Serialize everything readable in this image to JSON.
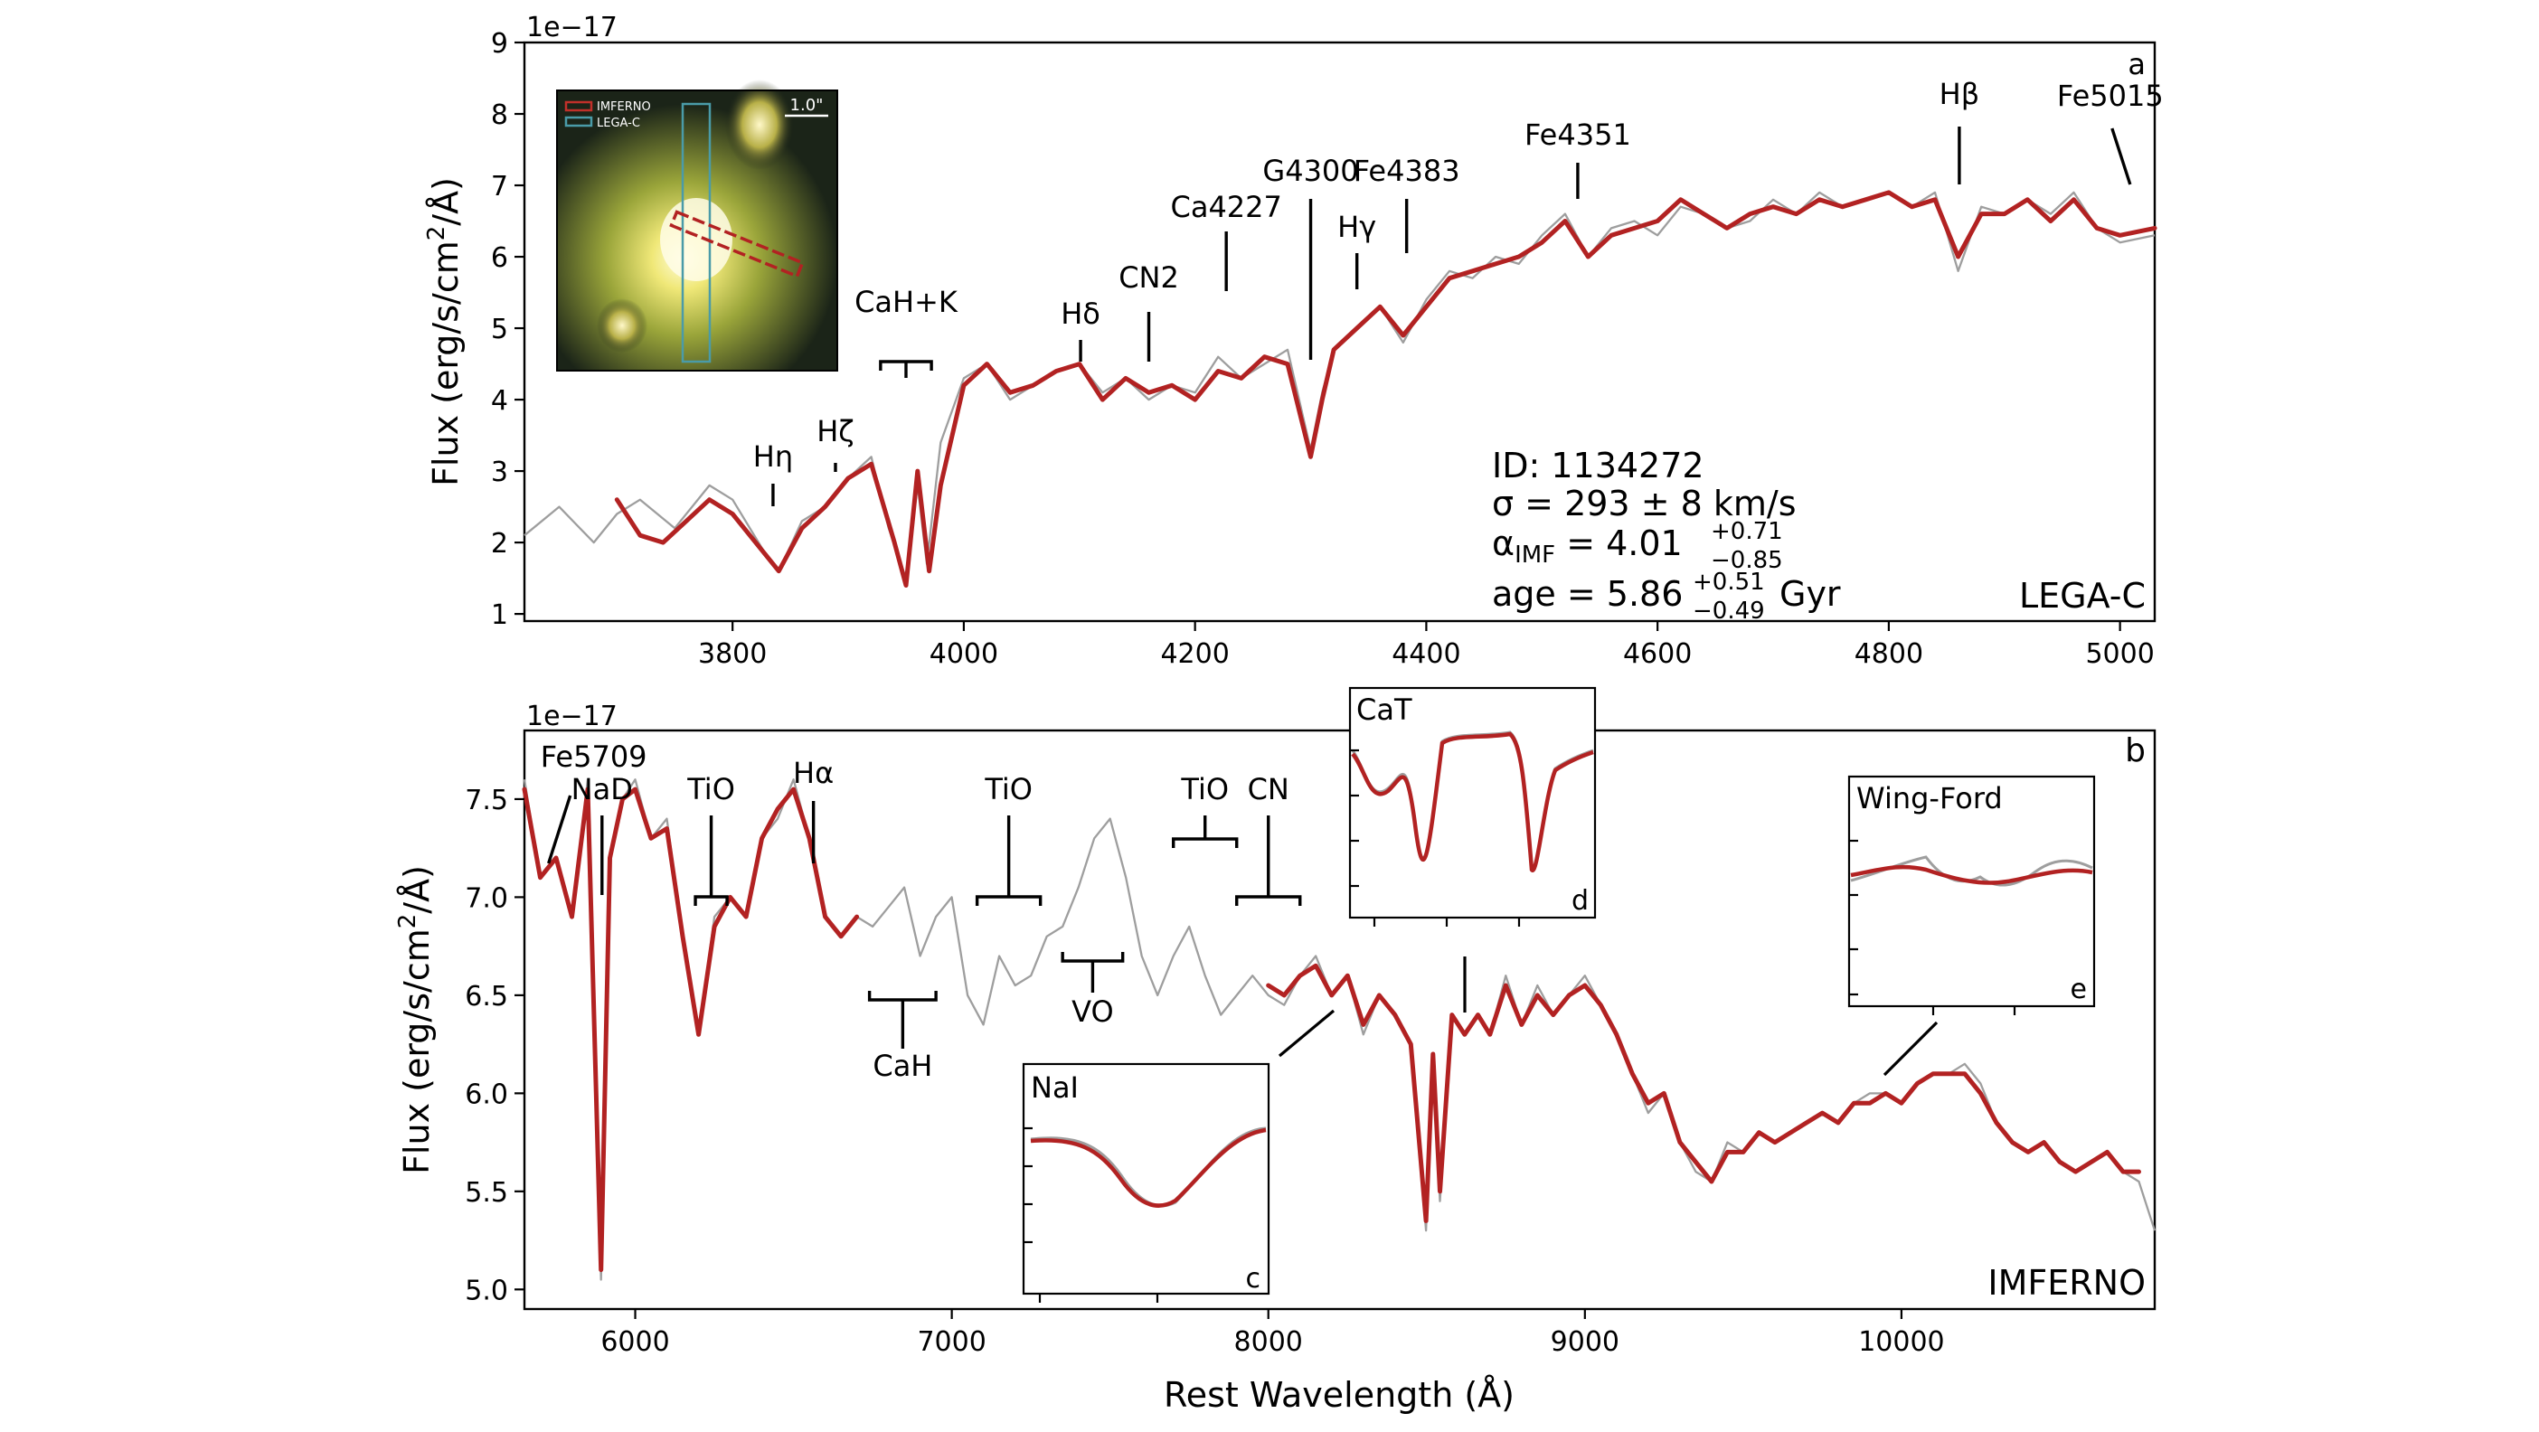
{
  "figure": {
    "top_panel": {
      "panel_letter": "a",
      "survey": "LEGA-C",
      "exponent_label": "1e−17",
      "ylabel": "Flux (erg/s/cm²/Å)",
      "info": {
        "id": "ID: 1134272",
        "sigma": "σ = 293 ± 8 km/s",
        "alpha_main": "α",
        "alpha_sub": "IMF",
        "alpha_val": " = 4.01",
        "alpha_up": "+0.71",
        "alpha_lo": "−0.85",
        "age_main": "age = 5.86",
        "age_up": "+0.51",
        "age_lo": "−0.49",
        "age_unit": " Gyr"
      },
      "image_inset": {
        "legend_imferno": "IMFERNO",
        "legend_legac": "LEGA-C",
        "scale_label": "1.0\""
      }
    },
    "bottom_panel": {
      "panel_letter": "b",
      "survey": "IMFERNO",
      "exponent_label": "1e−17",
      "ylabel": "Flux (erg/s/cm²/Å)",
      "xlabel": "Rest Wavelength (Å)",
      "insets": {
        "c": "NaI",
        "d": "CaT",
        "e": "Wing-Ford"
      }
    }
  },
  "chart_data": [
    {
      "panel": "a",
      "type": "line",
      "title": "",
      "xlabel": "",
      "ylabel": "Flux (erg/s/cm²/Å)",
      "y_scale_factor": "1e−17",
      "xlim": [
        3620,
        5030
      ],
      "ylim": [
        0.9,
        9.0
      ],
      "xticks": [
        3800,
        4000,
        4200,
        4400,
        4600,
        4800,
        5000
      ],
      "yticks": [
        1,
        2,
        3,
        4,
        5,
        6,
        7,
        8,
        9
      ],
      "series": [
        {
          "name": "observed",
          "color": "#9e9e9e",
          "x": [
            3620,
            3650,
            3680,
            3700,
            3720,
            3750,
            3780,
            3800,
            3830,
            3840,
            3860,
            3880,
            3900,
            3920,
            3935,
            3950,
            3960,
            3968,
            3980,
            4000,
            4020,
            4040,
            4060,
            4080,
            4100,
            4120,
            4140,
            4160,
            4180,
            4200,
            4220,
            4240,
            4260,
            4280,
            4300,
            4310,
            4320,
            4340,
            4360,
            4380,
            4400,
            4420,
            4440,
            4460,
            4480,
            4500,
            4520,
            4540,
            4560,
            4580,
            4600,
            4620,
            4640,
            4660,
            4680,
            4700,
            4720,
            4740,
            4760,
            4780,
            4800,
            4820,
            4840,
            4860,
            4880,
            4900,
            4920,
            4940,
            4960,
            4980,
            5000,
            5030
          ],
          "y": [
            2.1,
            2.5,
            2.0,
            2.4,
            2.6,
            2.2,
            2.8,
            2.6,
            1.8,
            1.6,
            2.3,
            2.5,
            2.9,
            3.2,
            2.2,
            1.5,
            2.8,
            1.7,
            3.4,
            4.3,
            4.5,
            4.0,
            4.2,
            4.4,
            4.5,
            4.1,
            4.3,
            4.0,
            4.2,
            4.1,
            4.6,
            4.3,
            4.5,
            4.7,
            3.3,
            4.1,
            4.7,
            5.0,
            5.3,
            4.8,
            5.4,
            5.8,
            5.7,
            6.0,
            5.9,
            6.3,
            6.6,
            6.0,
            6.4,
            6.5,
            6.3,
            6.7,
            6.6,
            6.4,
            6.5,
            6.8,
            6.6,
            6.9,
            6.7,
            6.8,
            6.9,
            6.7,
            6.9,
            5.8,
            6.7,
            6.6,
            6.8,
            6.6,
            6.9,
            6.4,
            6.2,
            6.3
          ]
        },
        {
          "name": "model",
          "color": "#b22222",
          "x": [
            3700,
            3720,
            3740,
            3760,
            3780,
            3800,
            3820,
            3840,
            3860,
            3880,
            3900,
            3920,
            3940,
            3950,
            3960,
            3970,
            3980,
            4000,
            4020,
            4040,
            4060,
            4080,
            4100,
            4120,
            4140,
            4160,
            4180,
            4200,
            4220,
            4240,
            4260,
            4280,
            4300,
            4310,
            4320,
            4340,
            4360,
            4380,
            4400,
            4420,
            4440,
            4460,
            4480,
            4500,
            4520,
            4540,
            4560,
            4580,
            4600,
            4620,
            4640,
            4660,
            4680,
            4700,
            4720,
            4740,
            4760,
            4780,
            4800,
            4820,
            4840,
            4860,
            4880,
            4900,
            4920,
            4940,
            4960,
            4980,
            5000,
            5030
          ],
          "y": [
            2.6,
            2.1,
            2.0,
            2.3,
            2.6,
            2.4,
            2.0,
            1.6,
            2.2,
            2.5,
            2.9,
            3.1,
            2.0,
            1.4,
            3.0,
            1.6,
            2.8,
            4.2,
            4.5,
            4.1,
            4.2,
            4.4,
            4.5,
            4.0,
            4.3,
            4.1,
            4.2,
            4.0,
            4.4,
            4.3,
            4.6,
            4.5,
            3.2,
            4.0,
            4.7,
            5.0,
            5.3,
            4.9,
            5.3,
            5.7,
            5.8,
            5.9,
            6.0,
            6.2,
            6.5,
            6.0,
            6.3,
            6.4,
            6.5,
            6.8,
            6.6,
            6.4,
            6.6,
            6.7,
            6.6,
            6.8,
            6.7,
            6.8,
            6.9,
            6.7,
            6.8,
            6.0,
            6.6,
            6.6,
            6.8,
            6.5,
            6.8,
            6.4,
            6.3,
            6.4
          ]
        }
      ],
      "annotations": [
        {
          "label": "Hη",
          "x": 3835
        },
        {
          "label": "Hζ",
          "x": 3889
        },
        {
          "label": "CaH+K",
          "x": 3950
        },
        {
          "label": "Hδ",
          "x": 4101
        },
        {
          "label": "CN2",
          "x": 4160
        },
        {
          "label": "Ca4227",
          "x": 4227
        },
        {
          "label": "G4300",
          "x": 4300
        },
        {
          "label": "Hγ",
          "x": 4340
        },
        {
          "label": "Fe4383",
          "x": 4383
        },
        {
          "label": "Fe4351",
          "x": 4531
        },
        {
          "label": "Hβ",
          "x": 4861
        },
        {
          "label": "Fe5015",
          "x": 5015
        }
      ]
    },
    {
      "panel": "b",
      "type": "line",
      "title": "",
      "xlabel": "Rest Wavelength (Å)",
      "ylabel": "Flux (erg/s/cm²/Å)",
      "y_scale_factor": "1e−17",
      "xlim": [
        5650,
        10800
      ],
      "ylim": [
        4.9,
        7.85
      ],
      "xticks": [
        6000,
        7000,
        8000,
        9000,
        10000
      ],
      "yticks": [
        5.0,
        5.5,
        6.0,
        6.5,
        7.0,
        7.5
      ],
      "series": [
        {
          "name": "observed",
          "color": "#9e9e9e",
          "x": [
            5650,
            5700,
            5750,
            5800,
            5850,
            5892,
            5920,
            5960,
            6000,
            6050,
            6100,
            6150,
            6200,
            6250,
            6300,
            6350,
            6400,
            6450,
            6500,
            6550,
            6600,
            6650,
            6700,
            6750,
            6800,
            6850,
            6900,
            6950,
            7000,
            7050,
            7100,
            7150,
            7200,
            7250,
            7300,
            7350,
            7400,
            7450,
            7500,
            7550,
            7600,
            7650,
            7700,
            7750,
            7800,
            7850,
            7900,
            7950,
            8000,
            8050,
            8100,
            8150,
            8200,
            8250,
            8300,
            8350,
            8400,
            8450,
            8498,
            8520,
            8542,
            8580,
            8620,
            8662,
            8700,
            8750,
            8800,
            8850,
            8900,
            8950,
            9000,
            9050,
            9100,
            9150,
            9200,
            9250,
            9300,
            9350,
            9400,
            9450,
            9500,
            9550,
            9600,
            9650,
            9700,
            9750,
            9800,
            9850,
            9900,
            9950,
            10000,
            10050,
            10100,
            10150,
            10200,
            10250,
            10300,
            10350,
            10400,
            10450,
            10500,
            10550,
            10600,
            10650,
            10700,
            10750,
            10800
          ],
          "y": [
            7.6,
            7.1,
            7.2,
            6.9,
            7.6,
            5.05,
            7.2,
            7.5,
            7.6,
            7.3,
            7.4,
            6.8,
            6.3,
            6.9,
            7.0,
            6.9,
            7.3,
            7.4,
            7.6,
            7.3,
            6.9,
            6.8,
            6.9,
            6.85,
            6.95,
            7.05,
            6.7,
            6.9,
            7.0,
            6.5,
            6.35,
            6.7,
            6.55,
            6.6,
            6.8,
            6.85,
            7.05,
            7.3,
            7.4,
            7.1,
            6.7,
            6.5,
            6.7,
            6.85,
            6.6,
            6.4,
            6.5,
            6.6,
            6.5,
            6.45,
            6.6,
            6.7,
            6.5,
            6.6,
            6.3,
            6.5,
            6.4,
            6.25,
            5.3,
            6.2,
            5.45,
            6.4,
            6.3,
            6.4,
            6.3,
            6.6,
            6.35,
            6.55,
            6.4,
            6.5,
            6.6,
            6.45,
            6.3,
            6.1,
            5.9,
            6.0,
            5.75,
            5.6,
            5.55,
            5.75,
            5.7,
            5.8,
            5.75,
            5.8,
            5.85,
            5.9,
            5.85,
            5.95,
            6.0,
            6.0,
            5.95,
            6.05,
            6.1,
            6.1,
            6.15,
            6.05,
            5.85,
            5.75,
            5.7,
            5.75,
            5.65,
            5.6,
            5.65,
            5.7,
            5.6,
            5.55,
            5.3
          ]
        },
        {
          "name": "model",
          "color": "#b22222",
          "x": [
            5650,
            5700,
            5750,
            5800,
            5850,
            5892,
            5920,
            5960,
            6000,
            6050,
            6100,
            6150,
            6200,
            6250,
            6300,
            6350,
            6400,
            6450,
            6500,
            6550,
            6600,
            6650,
            6700,
            8000,
            8050,
            8100,
            8150,
            8200,
            8250,
            8300,
            8350,
            8400,
            8450,
            8498,
            8520,
            8542,
            8580,
            8620,
            8662,
            8700,
            8750,
            8800,
            8850,
            8900,
            8950,
            9000,
            9050,
            9100,
            9150,
            9200,
            9250,
            9300,
            9350,
            9400,
            9450,
            9500,
            9550,
            9600,
            9650,
            9700,
            9750,
            9800,
            9850,
            9900,
            9950,
            10000,
            10050,
            10100,
            10150,
            10200,
            10250,
            10300,
            10350,
            10400,
            10450,
            10500,
            10550,
            10600,
            10650,
            10700,
            10750
          ],
          "y": [
            7.55,
            7.1,
            7.2,
            6.9,
            7.55,
            5.1,
            7.2,
            7.5,
            7.55,
            7.3,
            7.35,
            6.8,
            6.3,
            6.85,
            7.0,
            6.9,
            7.3,
            7.45,
            7.55,
            7.3,
            6.9,
            6.8,
            6.9,
            6.55,
            6.5,
            6.6,
            6.65,
            6.5,
            6.6,
            6.35,
            6.5,
            6.4,
            6.25,
            5.35,
            6.2,
            5.5,
            6.4,
            6.3,
            6.4,
            6.3,
            6.55,
            6.35,
            6.5,
            6.4,
            6.5,
            6.55,
            6.45,
            6.3,
            6.1,
            5.95,
            6.0,
            5.75,
            5.65,
            5.55,
            5.7,
            5.7,
            5.8,
            5.75,
            5.8,
            5.85,
            5.9,
            5.85,
            5.95,
            5.95,
            6.0,
            5.95,
            6.05,
            6.1,
            6.1,
            6.1,
            6.0,
            5.85,
            5.75,
            5.7,
            5.75,
            5.65,
            5.6,
            5.65,
            5.7,
            5.6,
            5.6
          ]
        }
      ],
      "annotations": [
        {
          "label": "Fe5709",
          "x": 5709
        },
        {
          "label": "NaD",
          "x": 5895
        },
        {
          "label": "TiO",
          "x": 6237
        },
        {
          "label": "Hα",
          "x": 6563
        },
        {
          "label": "CaH",
          "x": 6850
        },
        {
          "label": "TiO",
          "x": 7180
        },
        {
          "label": "VO",
          "x": 7440
        },
        {
          "label": "TiO",
          "x": 7800
        },
        {
          "label": "CN",
          "x": 7950
        }
      ]
    }
  ]
}
